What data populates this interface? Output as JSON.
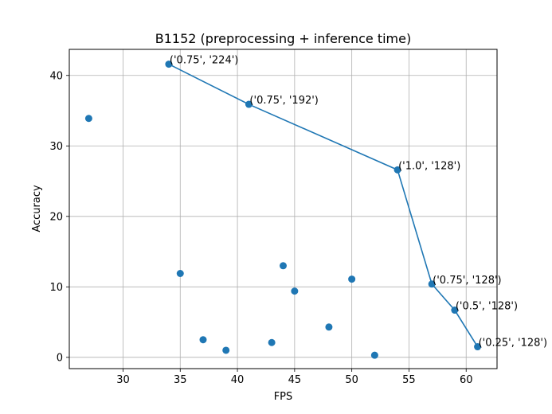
{
  "chart_data": {
    "type": "scatter",
    "title": "B1152 (preprocessing + inference time)",
    "xlabel": "FPS",
    "ylabel": "Accuracy",
    "xlim": [
      25.3,
      62.7
    ],
    "ylim": [
      -1.6,
      43.7
    ],
    "xticks": [
      30,
      35,
      40,
      45,
      50,
      55,
      60
    ],
    "yticks": [
      0,
      10,
      20,
      30,
      40
    ],
    "grid": true,
    "point_color": "#1f77b4",
    "line_color": "#1f77b4",
    "points": [
      {
        "x": 27,
        "y": 33.9
      },
      {
        "x": 34,
        "y": 41.6
      },
      {
        "x": 35,
        "y": 11.9
      },
      {
        "x": 37,
        "y": 2.5
      },
      {
        "x": 39,
        "y": 1.0
      },
      {
        "x": 41,
        "y": 35.9
      },
      {
        "x": 43,
        "y": 2.1
      },
      {
        "x": 44,
        "y": 13.0
      },
      {
        "x": 45,
        "y": 9.4
      },
      {
        "x": 48,
        "y": 4.3
      },
      {
        "x": 50,
        "y": 11.1
      },
      {
        "x": 52,
        "y": 0.3
      },
      {
        "x": 54,
        "y": 26.6
      },
      {
        "x": 57,
        "y": 10.4
      },
      {
        "x": 59,
        "y": 6.7
      },
      {
        "x": 61,
        "y": 1.5
      }
    ],
    "frontier": {
      "x": [
        34,
        41,
        54,
        57,
        59,
        61
      ],
      "y": [
        41.6,
        35.9,
        26.6,
        10.4,
        6.7,
        1.5
      ],
      "labels": [
        "('0.75', '224')",
        "('0.75', '192')",
        "('1.0', '128')",
        "('0.75', '128')",
        "('0.5', '128')",
        "('0.25', '128')"
      ]
    }
  }
}
